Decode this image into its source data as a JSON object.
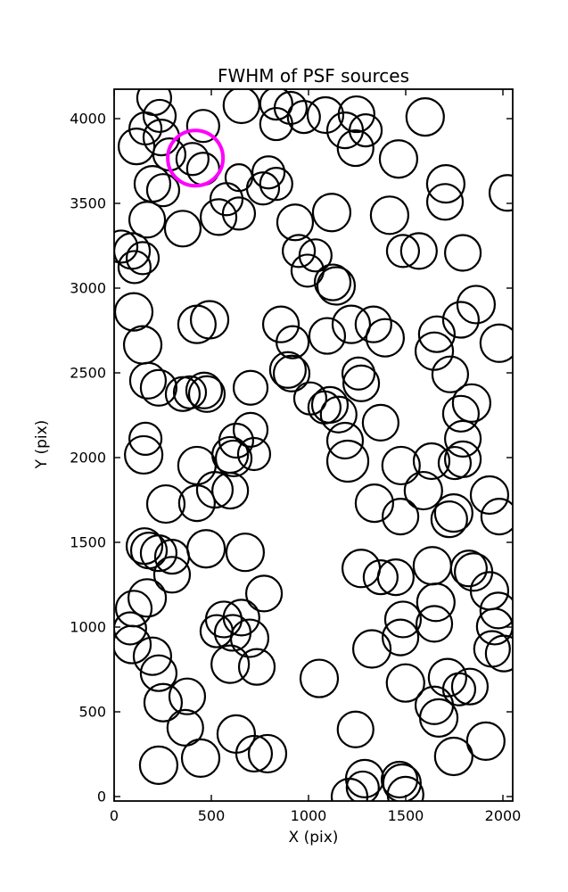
{
  "title": "FWHM of PSF sources",
  "xlabel": "X (pix)",
  "ylabel": "Y (pix)",
  "chart_data": {
    "type": "scatter",
    "title": "FWHM of PSF sources",
    "xlabel": "X (pix)",
    "ylabel": "Y (pix)",
    "xlim": [
      0,
      2050
    ],
    "ylim": [
      0,
      4175
    ],
    "xticks": [
      0,
      500,
      1000,
      1500,
      2000
    ],
    "yticks": [
      0,
      500,
      1000,
      1500,
      2000,
      2500,
      3000,
      3500,
      4000
    ],
    "grid": false,
    "legend": "none",
    "marker": "open-circle",
    "marker_color": "#000000",
    "highlight_color": "#ff00ff",
    "highlighted_source": {
      "x": 418,
      "y": 3767,
      "r": 31
    },
    "sources": [
      [
        206,
        4121,
        19
      ],
      [
        234,
        4016,
        18
      ],
      [
        161,
        3942,
        18
      ],
      [
        243,
        3889,
        20
      ],
      [
        115,
        3836,
        20
      ],
      [
        284,
        3789,
        18
      ],
      [
        458,
        3957,
        18
      ],
      [
        403,
        3762,
        18
      ],
      [
        458,
        3704,
        18
      ],
      [
        655,
        4079,
        20
      ],
      [
        834,
        4089,
        18
      ],
      [
        908,
        4063,
        18
      ],
      [
        834,
        3968,
        18
      ],
      [
        976,
        4010,
        18
      ],
      [
        794,
        3683,
        18
      ],
      [
        834,
        3615,
        18
      ],
      [
        766,
        3588,
        18
      ],
      [
        642,
        3652,
        15
      ],
      [
        578,
        3525,
        18
      ],
      [
        642,
        3440,
        18
      ],
      [
        537,
        3419,
        20
      ],
      [
        197,
        3615,
        20
      ],
      [
        252,
        3578,
        18
      ],
      [
        170,
        3404,
        20
      ],
      [
        353,
        3351,
        20
      ],
      [
        92,
        3219,
        20
      ],
      [
        37,
        3245,
        18
      ],
      [
        147,
        3177,
        18
      ],
      [
        931,
        3388,
        20
      ],
      [
        950,
        3219,
        18
      ],
      [
        1087,
        4021,
        20
      ],
      [
        1247,
        4026,
        20
      ],
      [
        1188,
        3931,
        20
      ],
      [
        1294,
        3931,
        18
      ],
      [
        1242,
        3826,
        20
      ],
      [
        1600,
        4010,
        21
      ],
      [
        1463,
        3762,
        21
      ],
      [
        1706,
        3615,
        21
      ],
      [
        1702,
        3509,
        20
      ],
      [
        2023,
        3562,
        20
      ],
      [
        1119,
        3446,
        21
      ],
      [
        1417,
        3430,
        21
      ],
      [
        1486,
        3219,
        18
      ],
      [
        1568,
        3219,
        20
      ],
      [
        1794,
        3208,
        20
      ],
      [
        1036,
        3193,
        18
      ],
      [
        105,
        3124,
        18
      ],
      [
        101,
        2860,
        21
      ],
      [
        147,
        2665,
        21
      ],
      [
        174,
        2454,
        20
      ],
      [
        229,
        2412,
        20
      ],
      [
        353,
        2375,
        19
      ],
      [
        390,
        2385,
        18
      ],
      [
        463,
        2396,
        20
      ],
      [
        477,
        2375,
        20
      ],
      [
        426,
        2786,
        21
      ],
      [
        491,
        2813,
        21
      ],
      [
        702,
        2412,
        19
      ],
      [
        858,
        2786,
        20
      ],
      [
        918,
        2681,
        18
      ],
      [
        894,
        2517,
        20
      ],
      [
        913,
        2496,
        20
      ],
      [
        995,
        3103,
        18
      ],
      [
        1009,
        2349,
        18
      ],
      [
        702,
        2164,
        19
      ],
      [
        628,
        2100,
        19
      ],
      [
        161,
        2111,
        18
      ],
      [
        1124,
        3034,
        20
      ],
      [
        1142,
        3013,
        21
      ],
      [
        1862,
        2903,
        21
      ],
      [
        1784,
        2813,
        20
      ],
      [
        1220,
        2786,
        21
      ],
      [
        1334,
        2786,
        20
      ],
      [
        1096,
        2718,
        20
      ],
      [
        1394,
        2707,
        21
      ],
      [
        1660,
        2728,
        20
      ],
      [
        1647,
        2628,
        21
      ],
      [
        1729,
        2491,
        20
      ],
      [
        1981,
        2675,
        21
      ],
      [
        1257,
        2496,
        18
      ],
      [
        1271,
        2438,
        20
      ],
      [
        1110,
        2311,
        20
      ],
      [
        1082,
        2296,
        18
      ],
      [
        1155,
        2254,
        20
      ],
      [
        1371,
        2206,
        20
      ],
      [
        1839,
        2322,
        21
      ],
      [
        1784,
        2259,
        20
      ],
      [
        1794,
        2111,
        20
      ],
      [
        1188,
        2100,
        20
      ],
      [
        152,
        2016,
        21
      ],
      [
        426,
        1953,
        21
      ],
      [
        597,
        2016,
        20
      ],
      [
        615,
        1995,
        20
      ],
      [
        720,
        2021,
        18
      ],
      [
        518,
        1810,
        20
      ],
      [
        597,
        1805,
        20
      ],
      [
        266,
        1726,
        21
      ],
      [
        426,
        1731,
        20
      ],
      [
        156,
        1478,
        20
      ],
      [
        179,
        1452,
        20
      ],
      [
        229,
        1436,
        20
      ],
      [
        298,
        1415,
        19
      ],
      [
        473,
        1462,
        21
      ],
      [
        674,
        1441,
        21
      ],
      [
        298,
        1309,
        20
      ],
      [
        170,
        1172,
        21
      ],
      [
        101,
        1109,
        20
      ],
      [
        771,
        1198,
        20
      ],
      [
        564,
        1045,
        20
      ],
      [
        655,
        1056,
        20
      ],
      [
        1202,
        1979,
        23
      ],
      [
        1476,
        1953,
        21
      ],
      [
        1633,
        1979,
        20
      ],
      [
        1752,
        1968,
        18
      ],
      [
        1794,
        1990,
        20
      ],
      [
        1591,
        1805,
        21
      ],
      [
        1339,
        1731,
        21
      ],
      [
        1473,
        1652,
        20
      ],
      [
        1747,
        1673,
        21
      ],
      [
        1724,
        1636,
        20
      ],
      [
        1931,
        1779,
        21
      ],
      [
        1981,
        1652,
        20
      ],
      [
        1271,
        1346,
        21
      ],
      [
        1371,
        1294,
        19
      ],
      [
        1449,
        1294,
        20
      ],
      [
        1637,
        1362,
        21
      ],
      [
        1825,
        1346,
        20
      ],
      [
        1849,
        1325,
        21
      ],
      [
        1931,
        1214,
        21
      ],
      [
        1655,
        1146,
        21
      ],
      [
        1486,
        1045,
        20
      ],
      [
        1976,
        1098,
        20
      ],
      [
        82,
        992,
        18
      ],
      [
        92,
        897,
        21
      ],
      [
        197,
        828,
        21
      ],
      [
        229,
        728,
        20
      ],
      [
        252,
        554,
        21
      ],
      [
        376,
        591,
        20
      ],
      [
        366,
        406,
        20
      ],
      [
        445,
        227,
        21
      ],
      [
        229,
        185,
        21
      ],
      [
        527,
        976,
        18
      ],
      [
        610,
        966,
        20
      ],
      [
        697,
        934,
        21
      ],
      [
        597,
        781,
        21
      ],
      [
        734,
        765,
        20
      ],
      [
        628,
        369,
        21
      ],
      [
        720,
        253,
        20
      ],
      [
        789,
        253,
        21
      ],
      [
        1055,
        697,
        21
      ],
      [
        1326,
        871,
        21
      ],
      [
        1473,
        939,
        20
      ],
      [
        1647,
        1019,
        20
      ],
      [
        1958,
        1003,
        20
      ],
      [
        1944,
        871,
        20
      ],
      [
        2004,
        844,
        20
      ],
      [
        1499,
        670,
        21
      ],
      [
        1715,
        702,
        21
      ],
      [
        1830,
        649,
        20
      ],
      [
        1775,
        633,
        18
      ],
      [
        1647,
        538,
        21
      ],
      [
        1670,
        464,
        21
      ],
      [
        1242,
        396,
        20
      ],
      [
        1747,
        237,
        21
      ],
      [
        1912,
        327,
        21
      ],
      [
        1289,
        106,
        21
      ],
      [
        1279,
        53,
        18
      ],
      [
        1468,
        100,
        20
      ],
      [
        1481,
        79,
        21
      ],
      [
        1211,
        0,
        20
      ],
      [
        1499,
        11,
        20
      ]
    ]
  }
}
